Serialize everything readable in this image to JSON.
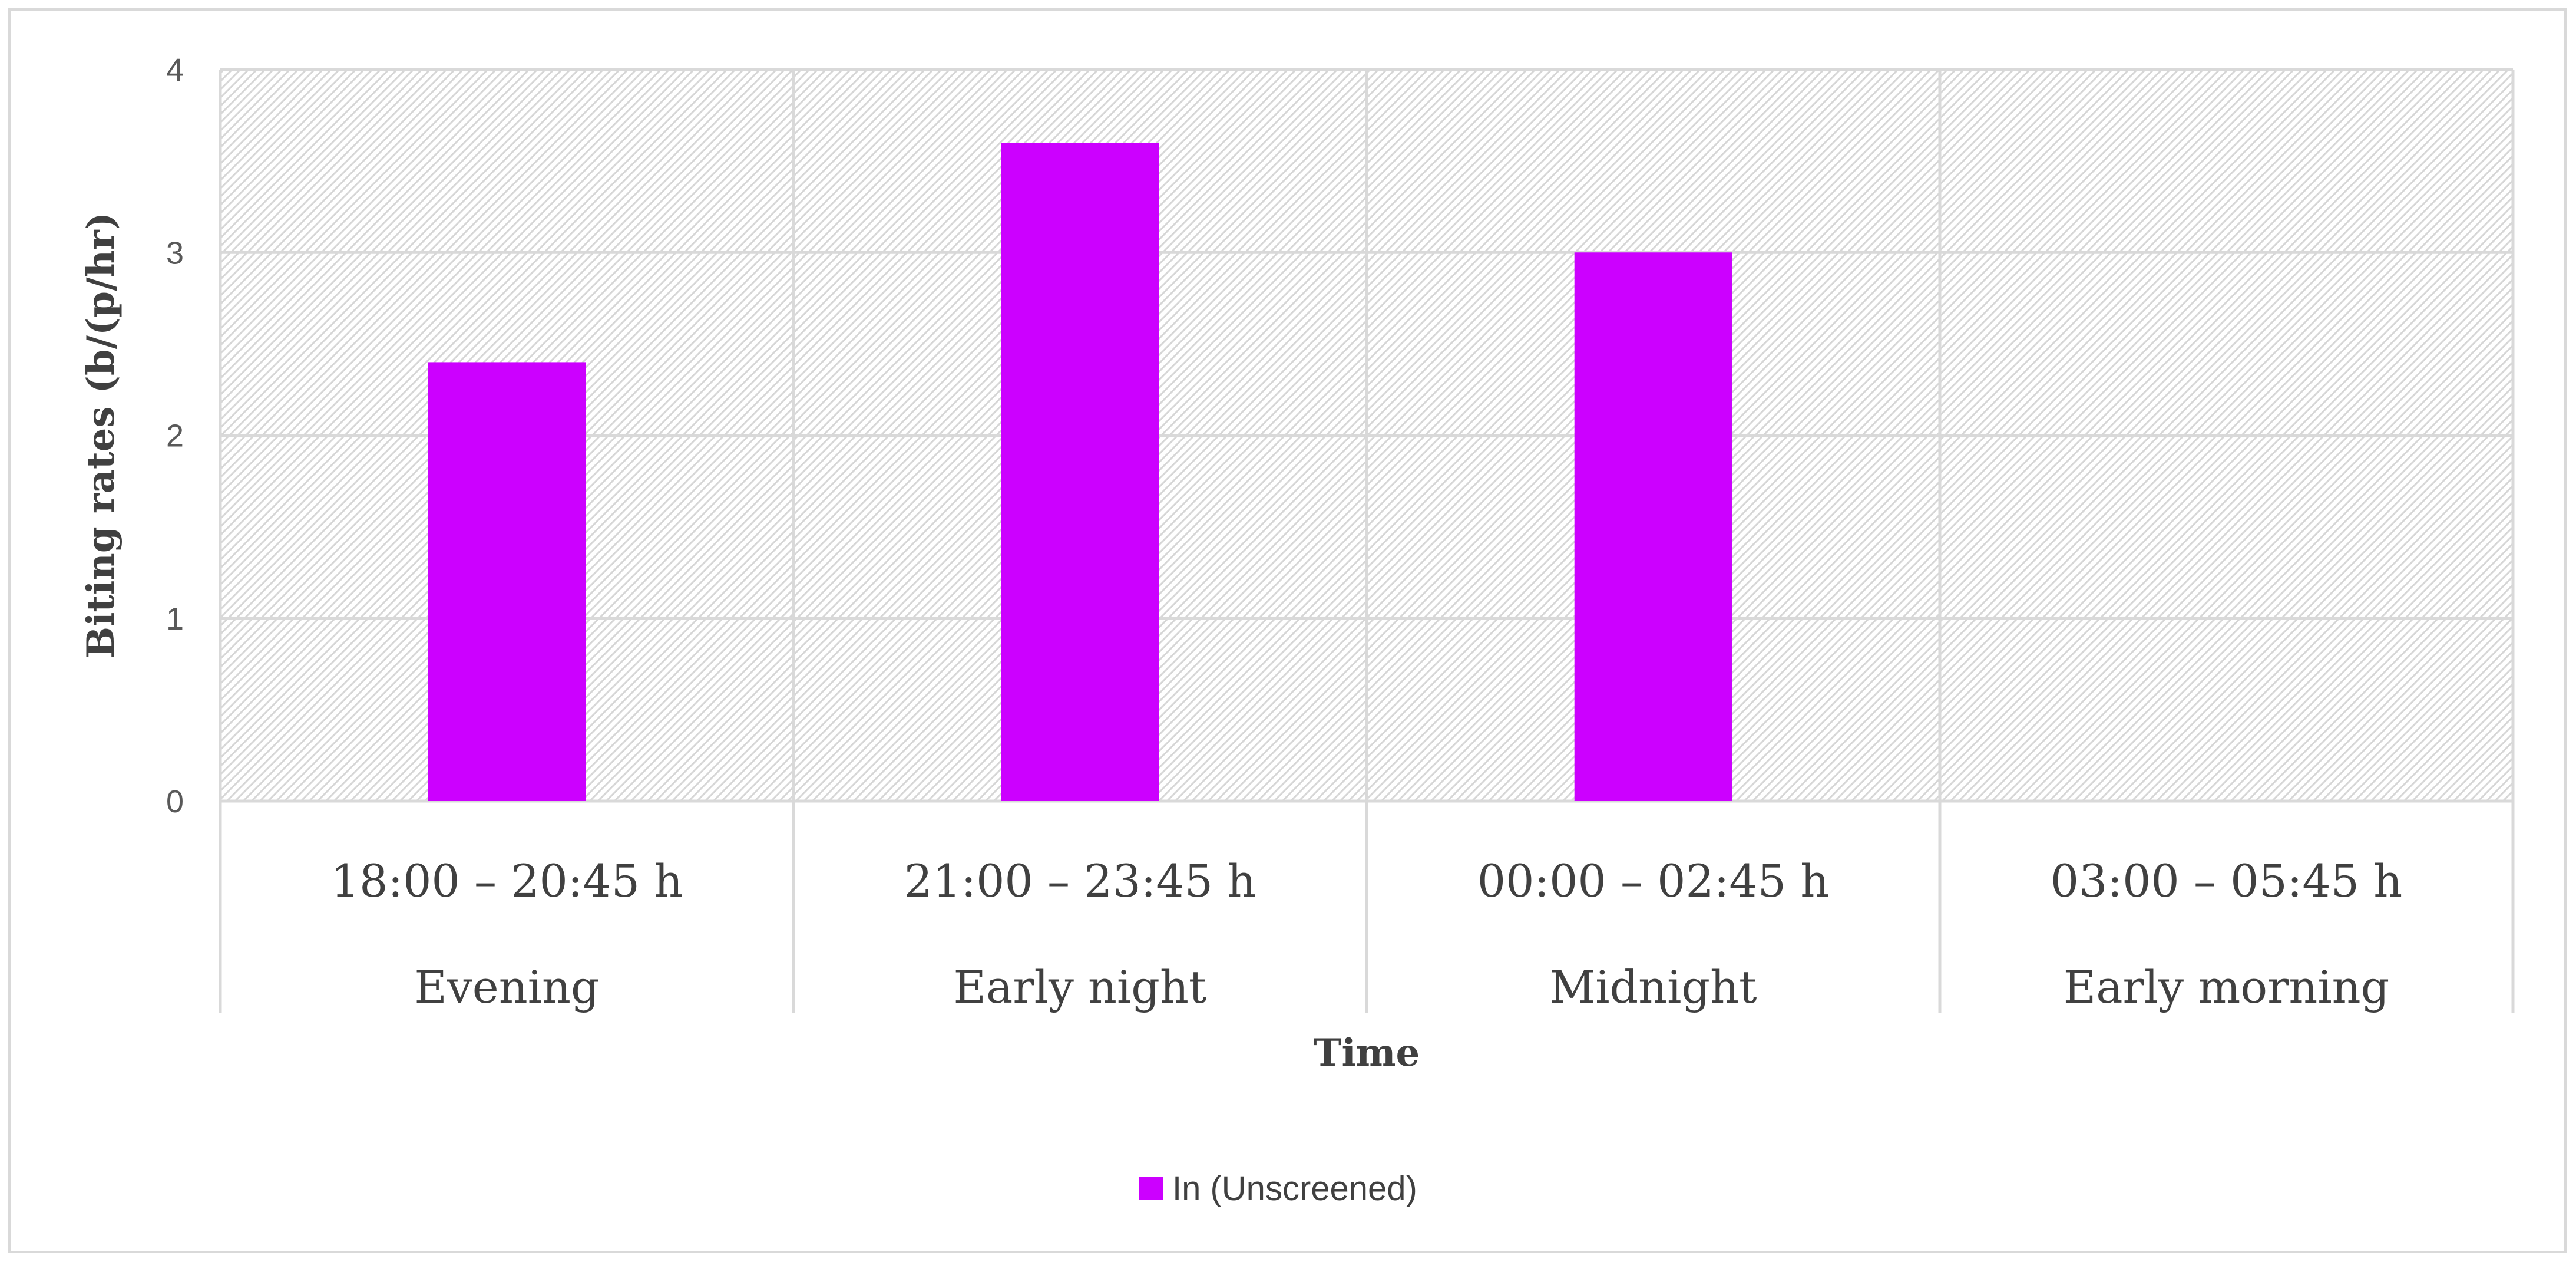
{
  "chart_data": {
    "type": "bar",
    "title": "",
    "xlabel": "Time",
    "ylabel": "Biting rates (b/(p/hr)",
    "ylim": [
      0,
      4
    ],
    "yticks": [
      0,
      1,
      2,
      3,
      4
    ],
    "categories": [
      {
        "range": "18:00 – 20:45 h",
        "period": "Evening"
      },
      {
        "range": "21:00 – 23:45 h",
        "period": "Early night"
      },
      {
        "range": "00:00 – 02:45 h",
        "period": "Midnight"
      },
      {
        "range": "03:00 – 05:45 h",
        "period": "Early morning"
      }
    ],
    "series": [
      {
        "name": "In (Unscreened)",
        "color": "#cc00ff",
        "values": [
          2.4,
          3.6,
          3.0,
          0
        ]
      }
    ],
    "grid": true,
    "legend_position": "bottom-center",
    "plot_background": "diagonal-hatch-light-grey"
  }
}
